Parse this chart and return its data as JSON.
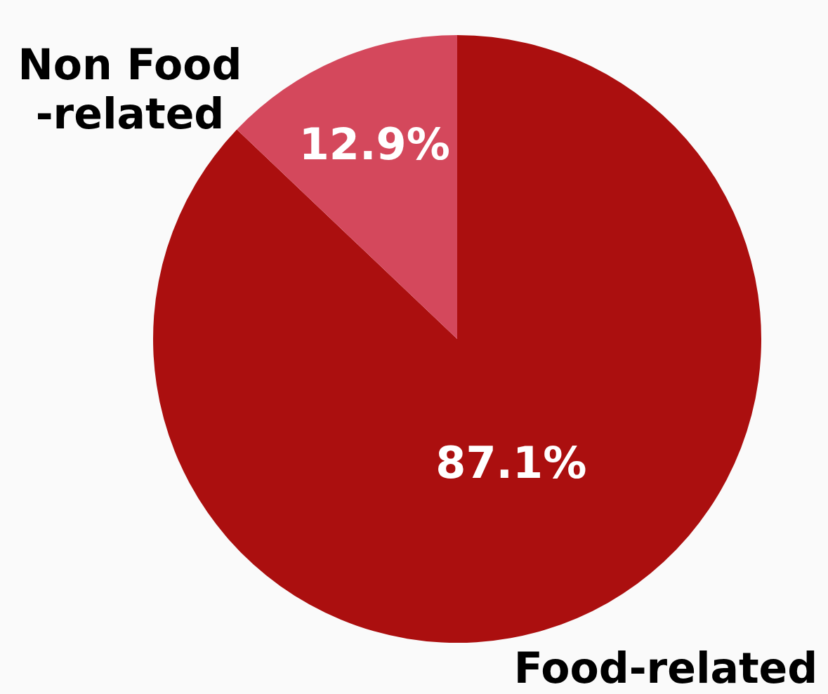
{
  "chart_data": {
    "type": "pie",
    "categories": [
      "Food-related",
      "Non Food\n-related"
    ],
    "values": [
      87.1,
      12.9
    ],
    "colors": [
      "#ab0f0f",
      "#d4485c"
    ],
    "value_labels": [
      "87.1%",
      "12.9%"
    ]
  }
}
